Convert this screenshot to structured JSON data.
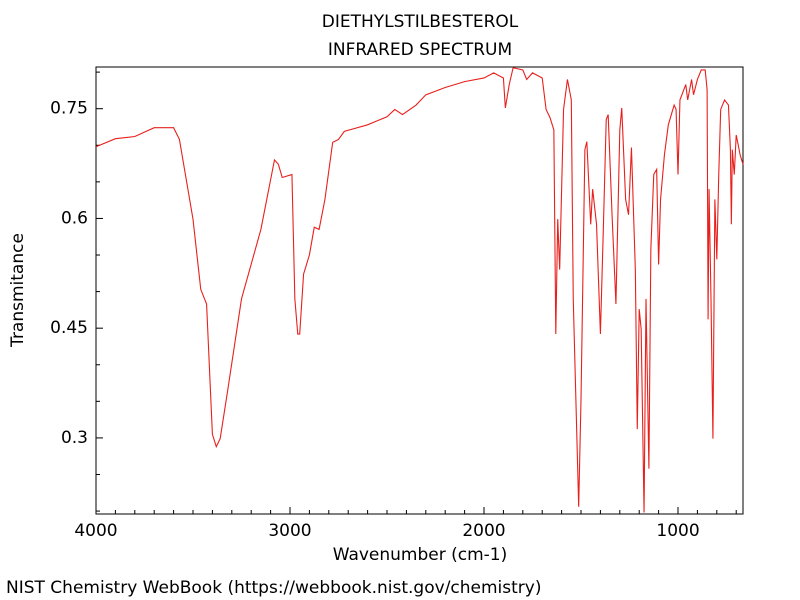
{
  "chart_data": {
    "type": "line",
    "title": "DIETHYLSTILBESTEROL",
    "subtitle": "INFRARED SPECTRUM",
    "x_label": "Wavenumber (cm-1)",
    "y_label": "Transmitance",
    "footer": "NIST Chemistry WebBook (https://webbook.nist.gov/chemistry)",
    "color": "#e8201c",
    "xlim": [
      4000,
      665
    ],
    "ylim": [
      0.196,
      0.807
    ],
    "xticks": [
      4000,
      3000,
      2000,
      1000
    ],
    "yticks": [
      0.75,
      0.6,
      0.45,
      0.3
    ],
    "xminorticks": [
      3900,
      3800,
      3700,
      3600,
      3500,
      3400,
      3300,
      3200,
      3100,
      2900,
      2800,
      2700,
      2600,
      2500,
      2400,
      2300,
      2200,
      2100,
      1900,
      1800,
      1700,
      1600,
      1500,
      1400,
      1300,
      1200,
      1100,
      900,
      800,
      700
    ],
    "yminorticks": [
      0.2,
      0.25,
      0.35,
      0.4,
      0.5,
      0.55,
      0.65,
      0.7,
      0.8
    ],
    "x": [
      4000,
      3900,
      3800,
      3700,
      3600,
      3570,
      3500,
      3460,
      3430,
      3400,
      3380,
      3360,
      3320,
      3250,
      3150,
      3080,
      3060,
      3040,
      2990,
      2975,
      2960,
      2950,
      2930,
      2900,
      2875,
      2850,
      2820,
      2780,
      2750,
      2720,
      2600,
      2500,
      2460,
      2420,
      2350,
      2300,
      2200,
      2100,
      2000,
      1950,
      1900,
      1890,
      1870,
      1850,
      1800,
      1780,
      1750,
      1700,
      1680,
      1660,
      1640,
      1630,
      1620,
      1610,
      1590,
      1570,
      1550,
      1540,
      1512,
      1500,
      1480,
      1470,
      1450,
      1440,
      1420,
      1400,
      1385,
      1370,
      1360,
      1340,
      1320,
      1300,
      1290,
      1270,
      1255,
      1240,
      1220,
      1210,
      1200,
      1190,
      1175,
      1165,
      1150,
      1140,
      1125,
      1110,
      1100,
      1090,
      1070,
      1050,
      1020,
      1010,
      1000,
      990,
      960,
      950,
      930,
      920,
      900,
      880,
      860,
      850,
      845,
      840,
      830,
      820,
      810,
      800,
      790,
      780,
      760,
      740,
      730,
      725,
      720,
      710,
      700,
      690,
      680,
      665
    ],
    "values": [
      0.698,
      0.709,
      0.712,
      0.724,
      0.724,
      0.708,
      0.599,
      0.503,
      0.483,
      0.305,
      0.288,
      0.299,
      0.367,
      0.49,
      0.585,
      0.68,
      0.674,
      0.656,
      0.66,
      0.49,
      0.442,
      0.442,
      0.524,
      0.55,
      0.588,
      0.585,
      0.626,
      0.704,
      0.708,
      0.719,
      0.728,
      0.739,
      0.749,
      0.742,
      0.755,
      0.769,
      0.779,
      0.787,
      0.792,
      0.799,
      0.792,
      0.751,
      0.783,
      0.806,
      0.803,
      0.79,
      0.799,
      0.792,
      0.749,
      0.738,
      0.721,
      0.442,
      0.599,
      0.53,
      0.749,
      0.79,
      0.762,
      0.49,
      0.206,
      0.353,
      0.694,
      0.705,
      0.592,
      0.64,
      0.592,
      0.442,
      0.585,
      0.735,
      0.742,
      0.605,
      0.483,
      0.721,
      0.751,
      0.626,
      0.605,
      0.697,
      0.53,
      0.312,
      0.476,
      0.449,
      0.198,
      0.49,
      0.258,
      0.558,
      0.66,
      0.667,
      0.537,
      0.626,
      0.687,
      0.728,
      0.755,
      0.749,
      0.66,
      0.762,
      0.783,
      0.762,
      0.79,
      0.769,
      0.79,
      0.803,
      0.803,
      0.776,
      0.462,
      0.64,
      0.49,
      0.299,
      0.626,
      0.544,
      0.66,
      0.749,
      0.762,
      0.755,
      0.694,
      0.592,
      0.694,
      0.66,
      0.714,
      0.701,
      0.687,
      0.674
    ]
  }
}
